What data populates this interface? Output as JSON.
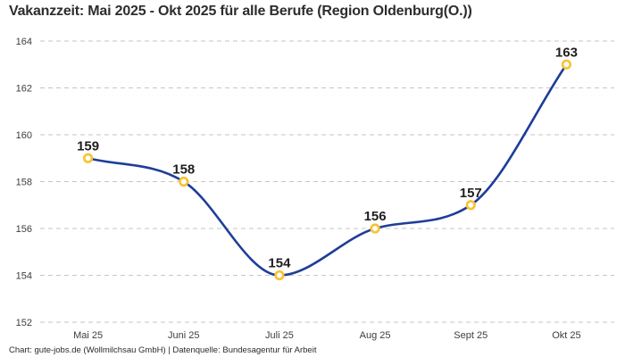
{
  "chart_data": {
    "type": "line",
    "title": "Vakanzzeit: Mai 2025 - Okt 2025 für alle Berufe (Region Oldenburg(O.))",
    "categories": [
      "Mai 25",
      "Juni 25",
      "Juli 25",
      "Aug 25",
      "Sept 25",
      "Okt 25"
    ],
    "values": [
      159,
      158,
      154,
      156,
      157,
      163
    ],
    "ylim": [
      152,
      164
    ],
    "ytick_step": 2,
    "grid": "horizontal-dashed",
    "legend_position": "none",
    "point_labels_visible": true,
    "curve": "monotone",
    "colors": {
      "line": "#1f3d99",
      "marker_ring": "#f9c233",
      "marker_fill": "#ffffff",
      "gridline": "#c6c6c6",
      "title_text": "#2d2d2d",
      "tick_text": "#3d3d3d",
      "point_label_text": "#1f1f1f"
    },
    "footer": "Chart: gute-jobs.de (Wollmilchsau GmbH) | Datenquelle: Bundesagentur für Arbeit"
  }
}
